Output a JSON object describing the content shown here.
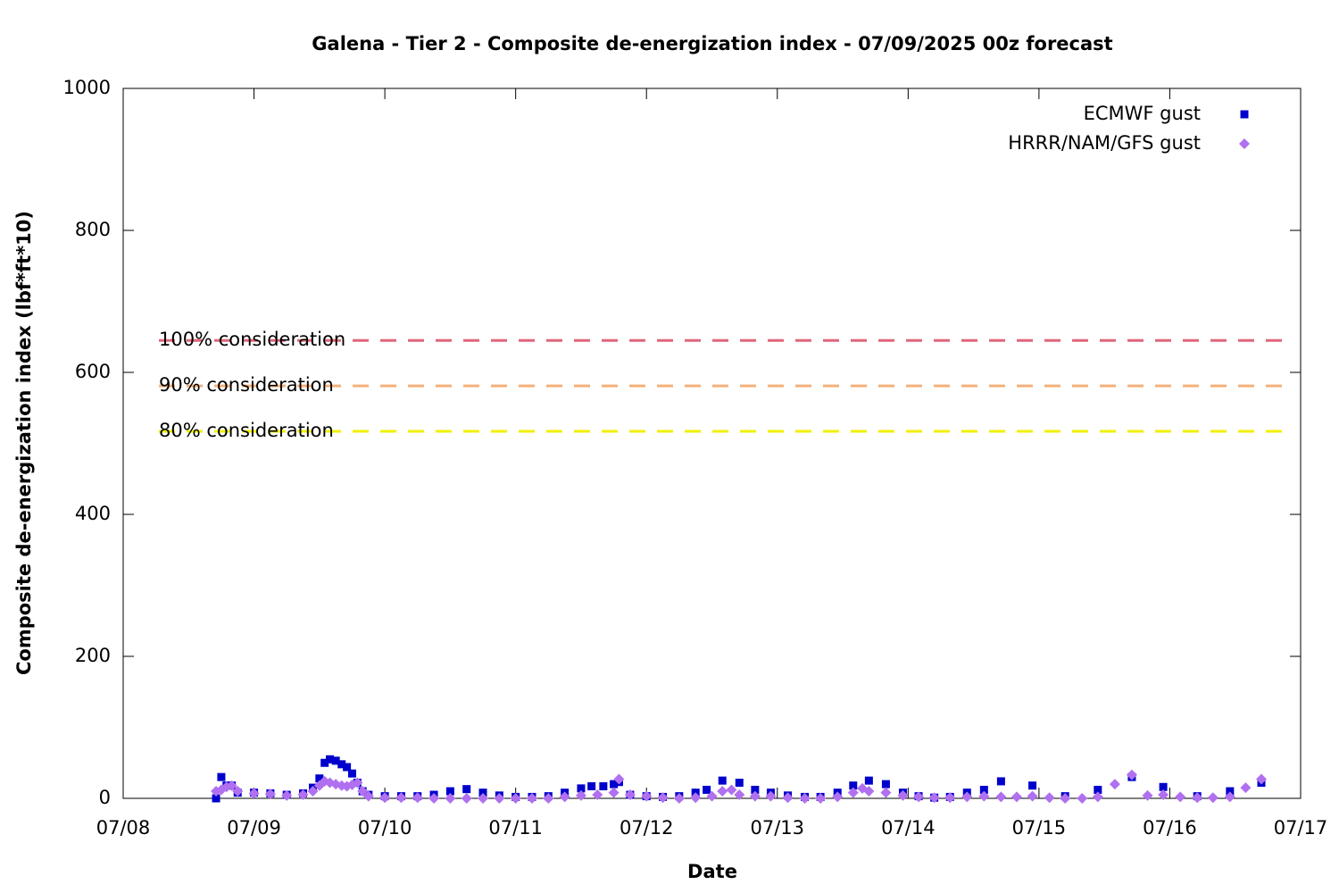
{
  "chart_data": {
    "type": "scatter",
    "title": "Galena - Tier 2 - Composite de-energization index - 07/09/2025 00z forecast",
    "x_label": "Date",
    "y_label": "Composite de-energization index (lbf*ft*10)",
    "xlim": [
      0,
      9
    ],
    "xticks": [
      {
        "value": 0,
        "label": "07/08"
      },
      {
        "value": 1,
        "label": "07/09"
      },
      {
        "value": 2,
        "label": "07/10"
      },
      {
        "value": 3,
        "label": "07/11"
      },
      {
        "value": 4,
        "label": "07/12"
      },
      {
        "value": 5,
        "label": "07/13"
      },
      {
        "value": 6,
        "label": "07/14"
      },
      {
        "value": 7,
        "label": "07/15"
      },
      {
        "value": 8,
        "label": "07/16"
      },
      {
        "value": 9,
        "label": "07/17"
      }
    ],
    "ylim": [
      0,
      1000
    ],
    "yticks": [
      0,
      200,
      400,
      600,
      800,
      1000
    ],
    "legend": "top-right",
    "thresholds": [
      {
        "label": "100% consideration",
        "value": 645,
        "color": "#e0667a"
      },
      {
        "label": "90% consideration",
        "value": 581,
        "color": "#f4b07a"
      },
      {
        "label": "80% consideration",
        "value": 517,
        "color": "#f0f000"
      }
    ],
    "series": [
      {
        "name": "ECMWF gust",
        "color": "#0000cc",
        "marker": "square",
        "x": [
          0.71,
          0.75,
          0.79,
          0.83,
          0.875,
          1.0,
          1.125,
          1.25,
          1.375,
          1.45,
          1.5,
          1.54,
          1.58,
          1.625,
          1.67,
          1.71,
          1.75,
          1.79,
          1.83,
          1.875,
          2.0,
          2.125,
          2.25,
          2.375,
          2.5,
          2.625,
          2.75,
          2.875,
          3.0,
          3.125,
          3.25,
          3.375,
          3.5,
          3.58,
          3.67,
          3.75,
          3.79,
          3.875,
          4.0,
          4.125,
          4.25,
          4.375,
          4.46,
          4.58,
          4.71,
          4.83,
          4.95,
          5.08,
          5.21,
          5.33,
          5.46,
          5.58,
          5.7,
          5.83,
          5.96,
          6.08,
          6.2,
          6.32,
          6.45,
          6.58,
          6.71,
          6.95,
          7.2,
          7.45,
          7.71,
          7.95,
          8.21,
          8.46,
          8.7
        ],
        "values": [
          0,
          30,
          18,
          18,
          8,
          8,
          7,
          5,
          7,
          15,
          28,
          50,
          55,
          53,
          48,
          44,
          35,
          22,
          10,
          5,
          3,
          3,
          3,
          5,
          10,
          13,
          8,
          4,
          2,
          2,
          3,
          8,
          14,
          17,
          17,
          20,
          23,
          5,
          3,
          2,
          3,
          8,
          12,
          25,
          22,
          12,
          8,
          4,
          2,
          2,
          8,
          18,
          25,
          20,
          8,
          3,
          1,
          2,
          8,
          12,
          24,
          18,
          3,
          12,
          30,
          16,
          3,
          10,
          22
        ]
      },
      {
        "name": "HRRR/NAM/GFS gust",
        "color": "#b070f0",
        "marker": "diamond",
        "x": [
          0.71,
          0.75,
          0.79,
          0.83,
          0.875,
          1.0,
          1.125,
          1.25,
          1.375,
          1.45,
          1.5,
          1.54,
          1.58,
          1.625,
          1.67,
          1.71,
          1.75,
          1.79,
          1.83,
          1.875,
          2.0,
          2.125,
          2.25,
          2.375,
          2.5,
          2.625,
          2.75,
          2.875,
          3.0,
          3.125,
          3.25,
          3.375,
          3.5,
          3.625,
          3.75,
          3.79,
          3.875,
          4.0,
          4.125,
          4.25,
          4.375,
          4.5,
          4.58,
          4.65,
          4.71,
          4.83,
          4.95,
          5.08,
          5.21,
          5.33,
          5.46,
          5.58,
          5.65,
          5.7,
          5.83,
          5.96,
          6.08,
          6.2,
          6.32,
          6.45,
          6.58,
          6.71,
          6.83,
          6.95,
          7.08,
          7.2,
          7.33,
          7.45,
          7.58,
          7.71,
          7.83,
          7.95,
          8.08,
          8.21,
          8.33,
          8.46,
          8.58,
          8.7
        ],
        "values": [
          10,
          12,
          16,
          18,
          10,
          7,
          6,
          4,
          5,
          10,
          18,
          24,
          22,
          20,
          18,
          17,
          19,
          22,
          10,
          3,
          1,
          1,
          1,
          0,
          0,
          0,
          0,
          0,
          0,
          0,
          0,
          2,
          4,
          5,
          8,
          27,
          5,
          3,
          1,
          0,
          1,
          3,
          10,
          12,
          5,
          3,
          3,
          1,
          0,
          0,
          2,
          8,
          14,
          10,
          8,
          4,
          2,
          1,
          1,
          2,
          3,
          2,
          2,
          3,
          1,
          0,
          0,
          2,
          20,
          33,
          4,
          5,
          2,
          1,
          1,
          2,
          15,
          27
        ]
      }
    ]
  }
}
